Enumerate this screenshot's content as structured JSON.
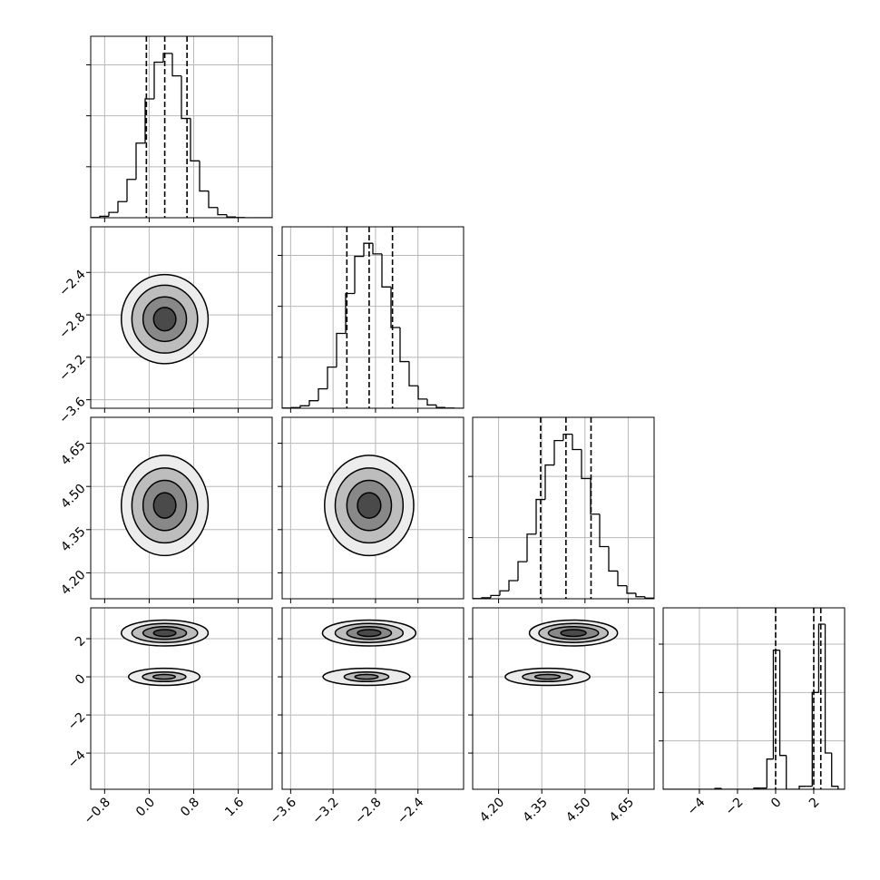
{
  "chart_data": {
    "type": "corner",
    "grid": true,
    "fill_colors": [
      "#ececec",
      "#bdbdbd",
      "#888888",
      "#4a4a4a"
    ],
    "line_color": "#000000",
    "grid_color": "#b8b8b8",
    "params": [
      {
        "lim": [
          -1.05,
          2.21
        ],
        "ticks": [
          {
            "value": -0.8,
            "label": "−0.8"
          },
          {
            "value": 0,
            "label": "0.0"
          },
          0.8,
          1.6
        ]
      },
      {
        "lim": [
          -3.68,
          -1.97
        ],
        "ticks": [
          {
            "value": -3.6,
            "label": "−3.6"
          },
          {
            "value": -3.2,
            "label": "−3.2"
          },
          {
            "value": -2.8,
            "label": "−2.8"
          },
          {
            "value": -2.4,
            "label": "−2.4"
          }
        ]
      },
      {
        "lim": [
          4.11,
          4.74
        ],
        "ticks": [
          {
            "value": 4.2,
            "label": "4.20"
          },
          4.35,
          {
            "value": 4.5,
            "label": "4.50"
          },
          4.65
        ]
      },
      {
        "lim": [
          -5.9,
          3.62
        ],
        "ticks": [
          {
            "value": -4,
            "label": "−4"
          },
          {
            "value": -2,
            "label": "−2"
          },
          0,
          2
        ]
      }
    ],
    "histograms": [
      {
        "bins": [
          -1.05,
          -0.887,
          -0.724,
          -0.561,
          -0.398,
          -0.235,
          -0.072,
          0.091,
          0.254,
          0.417,
          0.58,
          0.743,
          0.906,
          1.069,
          1.232,
          1.395,
          1.558,
          1.721,
          1.884,
          2.047,
          2.21
        ],
        "values": [
          1,
          7,
          26,
          79,
          188,
          366,
          583,
          763,
          806,
          696,
          487,
          279,
          131,
          50,
          15,
          4,
          1,
          0,
          0,
          0
        ],
        "quantiles": [
          -0.05,
          0.28,
          0.68
        ],
        "ylim": [
          0,
          890
        ],
        "yticks": [
          250,
          500,
          750
        ]
      },
      {
        "bins": [
          -3.68,
          -3.5945,
          -3.509,
          -3.4235,
          -3.338,
          -3.2525,
          -3.167,
          -3.0815,
          -2.996,
          -2.9105,
          -2.825,
          -2.7395,
          -2.654,
          -2.5685,
          -2.483,
          -2.3975,
          -2.312,
          -2.2265,
          -2.141,
          -2.0555,
          -1.97
        ],
        "values": [
          1,
          3,
          12,
          37,
          95,
          202,
          367,
          563,
          745,
          809,
          757,
          595,
          396,
          229,
          110,
          45,
          16,
          4,
          1,
          0
        ],
        "quantiles": [
          -3.07,
          -2.86,
          -2.64
        ],
        "ylim": [
          0,
          890
        ],
        "yticks": [
          250,
          500,
          750
        ]
      },
      {
        "bins": [
          4.11,
          4.1415,
          4.173,
          4.2045,
          4.236,
          4.2675,
          4.299,
          4.3305,
          4.362,
          4.3935,
          4.425,
          4.4565,
          4.488,
          4.5195,
          4.551,
          4.5825,
          4.614,
          4.6455,
          4.677,
          4.7085,
          4.74
        ],
        "values": [
          1,
          5,
          16,
          39,
          89,
          182,
          317,
          487,
          656,
          776,
          807,
          732,
          590,
          415,
          256,
          136,
          64,
          27,
          10,
          3
        ],
        "quantiles": [
          4.346,
          4.434,
          4.521
        ],
        "ylim": [
          0,
          890
        ],
        "yticks": [
          300,
          600
        ]
      },
      {
        "bins": [
          -5.9,
          -5.56,
          -5.22,
          -4.88,
          -4.54,
          -4.2,
          -3.86,
          -3.52,
          -3.18,
          -2.84,
          -2.5,
          -2.16,
          -1.82,
          -1.48,
          -1.14,
          -0.8,
          -0.46,
          -0.12,
          0.22,
          0.56,
          0.9,
          1.24,
          1.58,
          1.92,
          2.26,
          2.6,
          2.94,
          3.28,
          3.62
        ],
        "values": [
          0,
          0,
          0,
          0,
          0,
          0,
          0,
          0,
          15,
          0,
          0,
          0,
          0,
          0,
          20,
          20,
          500,
          2300,
          560,
          0,
          0,
          50,
          50,
          1600,
          2730,
          600,
          50,
          0
        ],
        "quantiles": [
          0.0,
          2.0,
          2.37
        ],
        "ylim": [
          0,
          3000
        ],
        "yticks": [
          800,
          1600,
          2400
        ]
      }
    ],
    "pairs": [
      {
        "xparam": 0,
        "yparam": 1,
        "groups": [
          {
            "contours": [
              {
                "cx": 0.28,
                "cy": -2.84,
                "rx": 0.78,
                "ry": 0.42
              },
              {
                "cx": 0.28,
                "cy": -2.84,
                "rx": 0.59,
                "ry": 0.32
              },
              {
                "cx": 0.28,
                "cy": -2.84,
                "rx": 0.39,
                "ry": 0.21
              },
              {
                "cx": 0.28,
                "cy": -2.84,
                "rx": 0.2,
                "ry": 0.11
              }
            ]
          }
        ]
      },
      {
        "xparam": 0,
        "yparam": 2,
        "groups": [
          {
            "contours": [
              {
                "cx": 0.28,
                "cy": 4.434,
                "rx": 0.78,
                "ry": 0.174
              },
              {
                "cx": 0.28,
                "cy": 4.434,
                "rx": 0.59,
                "ry": 0.13
              },
              {
                "cx": 0.28,
                "cy": 4.434,
                "rx": 0.39,
                "ry": 0.087
              },
              {
                "cx": 0.28,
                "cy": 4.434,
                "rx": 0.2,
                "ry": 0.044
              }
            ]
          }
        ]
      },
      {
        "xparam": 1,
        "yparam": 2,
        "groups": [
          {
            "contours": [
              {
                "cx": -2.86,
                "cy": 4.434,
                "rx": 0.42,
                "ry": 0.174
              },
              {
                "cx": -2.86,
                "cy": 4.434,
                "rx": 0.32,
                "ry": 0.13
              },
              {
                "cx": -2.86,
                "cy": 4.434,
                "rx": 0.21,
                "ry": 0.087
              },
              {
                "cx": -2.86,
                "cy": 4.434,
                "rx": 0.11,
                "ry": 0.044
              }
            ]
          }
        ]
      },
      {
        "xparam": 0,
        "yparam": 3,
        "groups": [
          {
            "contours": [
              {
                "cx": 0.28,
                "cy": 2.3,
                "rx": 0.78,
                "ry": 0.68
              },
              {
                "cx": 0.28,
                "cy": 2.3,
                "rx": 0.59,
                "ry": 0.5
              },
              {
                "cx": 0.28,
                "cy": 2.3,
                "rx": 0.39,
                "ry": 0.33
              },
              {
                "cx": 0.28,
                "cy": 2.3,
                "rx": 0.2,
                "ry": 0.18
              }
            ]
          },
          {
            "contours": [
              {
                "cx": 0.27,
                "cy": 0.0,
                "rx": 0.64,
                "ry": 0.45
              },
              {
                "cx": 0.27,
                "cy": 0.0,
                "rx": 0.39,
                "ry": 0.25
              },
              {
                "cx": 0.27,
                "cy": 0.0,
                "rx": 0.2,
                "ry": 0.12
              }
            ]
          }
        ]
      },
      {
        "xparam": 1,
        "yparam": 3,
        "groups": [
          {
            "contours": [
              {
                "cx": -2.86,
                "cy": 2.3,
                "rx": 0.44,
                "ry": 0.68
              },
              {
                "cx": -2.86,
                "cy": 2.3,
                "rx": 0.32,
                "ry": 0.5
              },
              {
                "cx": -2.86,
                "cy": 2.3,
                "rx": 0.21,
                "ry": 0.33
              },
              {
                "cx": -2.86,
                "cy": 2.3,
                "rx": 0.11,
                "ry": 0.18
              }
            ]
          },
          {
            "contours": [
              {
                "cx": -2.885,
                "cy": 0.0,
                "rx": 0.41,
                "ry": 0.45
              },
              {
                "cx": -2.885,
                "cy": 0.0,
                "rx": 0.21,
                "ry": 0.25
              },
              {
                "cx": -2.885,
                "cy": 0.0,
                "rx": 0.11,
                "ry": 0.12
              }
            ]
          }
        ]
      },
      {
        "xparam": 2,
        "yparam": 3,
        "groups": [
          {
            "contours": [
              {
                "cx": 4.46,
                "cy": 2.3,
                "rx": 0.153,
                "ry": 0.68
              },
              {
                "cx": 4.46,
                "cy": 2.3,
                "rx": 0.12,
                "ry": 0.5
              },
              {
                "cx": 4.46,
                "cy": 2.3,
                "rx": 0.087,
                "ry": 0.33
              },
              {
                "cx": 4.46,
                "cy": 2.3,
                "rx": 0.044,
                "ry": 0.18
              }
            ]
          },
          {
            "contours": [
              {
                "cx": 4.37,
                "cy": 0.0,
                "rx": 0.147,
                "ry": 0.45
              },
              {
                "cx": 4.37,
                "cy": 0.0,
                "rx": 0.087,
                "ry": 0.25
              },
              {
                "cx": 4.37,
                "cy": 0.0,
                "rx": 0.044,
                "ry": 0.12
              }
            ]
          }
        ]
      }
    ]
  }
}
